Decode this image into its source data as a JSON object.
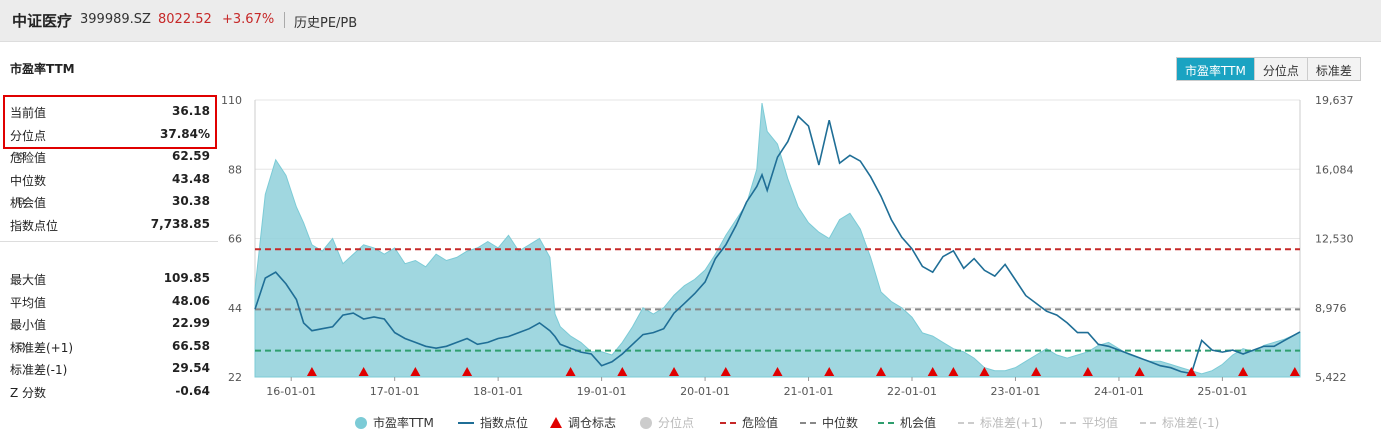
{
  "header": {
    "name": "中证医疗",
    "code": "399989.SZ",
    "price": "8022.52",
    "change": "+3.67%",
    "tab": "历史PE/PB"
  },
  "sidebar": {
    "title": "市盈率TTM",
    "group1": [
      {
        "label": "当前值",
        "value": "36.18"
      },
      {
        "label": "分位点",
        "value": "37.84%"
      },
      {
        "label": "危险值",
        "value": "62.59",
        "gear": true
      },
      {
        "label": "中位数",
        "value": "43.48"
      },
      {
        "label": "机会值",
        "value": "30.38",
        "gear": true
      },
      {
        "label": "指数点位",
        "value": "7,738.85"
      }
    ],
    "group2": [
      {
        "label": "最大值",
        "value": "109.85"
      },
      {
        "label": "平均值",
        "value": "48.06"
      },
      {
        "label": "最小值",
        "value": "22.99"
      },
      {
        "label": "标准差(+1)",
        "value": "66.58",
        "gear": true
      },
      {
        "label": "标准差(-1)",
        "value": "29.54"
      },
      {
        "label": "Z 分数",
        "value": "-0.64"
      }
    ]
  },
  "metric_tabs": [
    {
      "label": "市盈率TTM",
      "active": true
    },
    {
      "label": "分位点",
      "active": false
    },
    {
      "label": "标准差",
      "active": false
    }
  ],
  "legend": [
    {
      "label": "市盈率TTM",
      "symbol": "dot",
      "color": "#7ccbd6",
      "active": true
    },
    {
      "label": "指数点位",
      "symbol": "line",
      "color": "#1f6e96",
      "active": true
    },
    {
      "label": "调仓标志",
      "symbol": "triangle",
      "color": "#e00000",
      "active": true
    },
    {
      "label": "分位点",
      "symbol": "dot",
      "color": "#cccccc",
      "active": false
    },
    {
      "label": "危险值",
      "symbol": "dash",
      "color": "#c62828",
      "active": true
    },
    {
      "label": "中位数",
      "symbol": "dash",
      "color": "#888888",
      "active": true
    },
    {
      "label": "机会值",
      "symbol": "dash",
      "color": "#2e9e6e",
      "active": true
    },
    {
      "label": "标准差(+1)",
      "symbol": "dash",
      "color": "#cccccc",
      "active": false
    },
    {
      "label": "平均值",
      "symbol": "dash",
      "color": "#cccccc",
      "active": false
    },
    {
      "label": "标准差(-1)",
      "symbol": "dash",
      "color": "#cccccc",
      "active": false
    }
  ],
  "colors": {
    "pe_fill": "#8fd0da",
    "pe_line": "#7ccbd6",
    "index_line": "#1f6e96",
    "danger": "#c62828",
    "median": "#888888",
    "opportunity": "#2e9e6e",
    "marker": "#e00000"
  },
  "chart_data": {
    "type": "area",
    "left_axis": {
      "label": "市盈率TTM",
      "ylim": [
        22,
        110
      ],
      "ticks": [
        "110",
        "88",
        "66",
        "44",
        "22"
      ]
    },
    "right_axis": {
      "label": "指数点位",
      "ylim": [
        5422,
        19637
      ],
      "ticks": [
        "19,637",
        "16,084",
        "12,530",
        "8,976",
        "5,422"
      ]
    },
    "x_ticks": [
      "16-01-01",
      "17-01-01",
      "18-01-01",
      "19-01-01",
      "20-01-01",
      "21-01-01",
      "22-01-01",
      "23-01-01",
      "24-01-01",
      "25-01-01"
    ],
    "x_range": [
      2015.65,
      2025.75
    ],
    "reference_lines": {
      "danger": 62.59,
      "median": 43.48,
      "opportunity": 30.38
    },
    "series": [
      {
        "name": "市盈率TTM",
        "x": [
          2015.65,
          2015.75,
          2015.85,
          2015.95,
          2016.05,
          2016.12,
          2016.2,
          2016.3,
          2016.4,
          2016.5,
          2016.6,
          2016.7,
          2016.8,
          2016.9,
          2017.0,
          2017.1,
          2017.2,
          2017.3,
          2017.4,
          2017.5,
          2017.6,
          2017.7,
          2017.8,
          2017.9,
          2018.0,
          2018.1,
          2018.2,
          2018.3,
          2018.4,
          2018.5,
          2018.55,
          2018.6,
          2018.7,
          2018.8,
          2018.9,
          2019.0,
          2019.1,
          2019.2,
          2019.3,
          2019.4,
          2019.5,
          2019.6,
          2019.7,
          2019.8,
          2019.9,
          2020.0,
          2020.1,
          2020.2,
          2020.3,
          2020.4,
          2020.5,
          2020.55,
          2020.6,
          2020.7,
          2020.8,
          2020.9,
          2021.0,
          2021.1,
          2021.2,
          2021.3,
          2021.4,
          2021.5,
          2021.6,
          2021.7,
          2021.8,
          2021.9,
          2022.0,
          2022.1,
          2022.2,
          2022.3,
          2022.4,
          2022.5,
          2022.6,
          2022.7,
          2022.8,
          2022.9,
          2023.0,
          2023.1,
          2023.2,
          2023.3,
          2023.4,
          2023.5,
          2023.6,
          2023.7,
          2023.8,
          2023.9,
          2024.0,
          2024.1,
          2024.2,
          2024.3,
          2024.4,
          2024.5,
          2024.6,
          2024.7,
          2024.8,
          2024.9,
          2025.0,
          2025.1,
          2025.2,
          2025.3,
          2025.4,
          2025.5,
          2025.6,
          2025.75
        ],
        "values": [
          50,
          80,
          91,
          86,
          76,
          71,
          64,
          62,
          66,
          58,
          61,
          64,
          63,
          61,
          63,
          58,
          59,
          57,
          61,
          59,
          60,
          62,
          63,
          65,
          63,
          67,
          62,
          64,
          66,
          60,
          42,
          38,
          35,
          33,
          30,
          30,
          29,
          33,
          38,
          44,
          42,
          44,
          48,
          51,
          53,
          56,
          61,
          67,
          72,
          77,
          88,
          109,
          100,
          96,
          85,
          76,
          71,
          68,
          66,
          72,
          74,
          69,
          60,
          49,
          46,
          44,
          41,
          36,
          35,
          33,
          31,
          30,
          28,
          25,
          24,
          24,
          25,
          27,
          29,
          31,
          29,
          28,
          29,
          30,
          32,
          33,
          31,
          29,
          28,
          27,
          27,
          26,
          25,
          24,
          23,
          24,
          26,
          29,
          31,
          30,
          32,
          33,
          34,
          36.18
        ]
      },
      {
        "name": "指数点位",
        "x": [
          2015.65,
          2015.75,
          2015.85,
          2015.95,
          2016.05,
          2016.12,
          2016.2,
          2016.3,
          2016.4,
          2016.5,
          2016.6,
          2016.7,
          2016.8,
          2016.9,
          2017.0,
          2017.1,
          2017.2,
          2017.3,
          2017.4,
          2017.5,
          2017.6,
          2017.7,
          2017.8,
          2017.9,
          2018.0,
          2018.1,
          2018.2,
          2018.3,
          2018.4,
          2018.5,
          2018.55,
          2018.6,
          2018.7,
          2018.8,
          2018.9,
          2019.0,
          2019.1,
          2019.2,
          2019.3,
          2019.4,
          2019.5,
          2019.6,
          2019.7,
          2019.8,
          2019.9,
          2020.0,
          2020.1,
          2020.2,
          2020.3,
          2020.4,
          2020.5,
          2020.55,
          2020.6,
          2020.7,
          2020.8,
          2020.9,
          2021.0,
          2021.1,
          2021.2,
          2021.3,
          2021.4,
          2021.5,
          2021.6,
          2021.7,
          2021.8,
          2021.9,
          2022.0,
          2022.1,
          2022.2,
          2022.3,
          2022.4,
          2022.5,
          2022.6,
          2022.7,
          2022.8,
          2022.9,
          2023.0,
          2023.1,
          2023.2,
          2023.3,
          2023.4,
          2023.5,
          2023.6,
          2023.7,
          2023.8,
          2023.9,
          2024.0,
          2024.1,
          2024.2,
          2024.3,
          2024.4,
          2024.5,
          2024.6,
          2024.7,
          2024.8,
          2024.9,
          2025.0,
          2025.1,
          2025.2,
          2025.3,
          2025.4,
          2025.5,
          2025.6,
          2025.75
        ],
        "values": [
          8900,
          10500,
          10800,
          10200,
          9400,
          8200,
          7800,
          7900,
          8000,
          8600,
          8700,
          8400,
          8500,
          8400,
          7700,
          7400,
          7200,
          7000,
          6900,
          7000,
          7200,
          7400,
          7100,
          7200,
          7400,
          7500,
          7700,
          7900,
          8200,
          7800,
          7500,
          7100,
          6900,
          6700,
          6600,
          6000,
          6200,
          6600,
          7100,
          7600,
          7700,
          7900,
          8700,
          9200,
          9700,
          10300,
          11500,
          12200,
          13200,
          14400,
          15200,
          15800,
          15000,
          16700,
          17500,
          18800,
          18300,
          16300,
          18600,
          16400,
          16800,
          16500,
          15700,
          14700,
          13500,
          12600,
          12000,
          11100,
          10800,
          11600,
          11900,
          11000,
          11500,
          10900,
          10600,
          11200,
          10400,
          9600,
          9200,
          8800,
          8600,
          8200,
          7700,
          7700,
          7100,
          7000,
          6800,
          6600,
          6400,
          6200,
          6000,
          5900,
          5700,
          5600,
          7300,
          6800,
          6700,
          6800,
          6600,
          6800,
          7000,
          7000,
          7300,
          7738.85
        ]
      }
    ],
    "rebalance_markers": [
      2016.2,
      2016.7,
      2017.2,
      2017.7,
      2018.7,
      2019.2,
      2019.7,
      2020.2,
      2020.7,
      2021.2,
      2021.7,
      2022.2,
      2022.4,
      2022.7,
      2023.2,
      2023.7,
      2024.2,
      2024.7,
      2025.2,
      2025.7
    ]
  }
}
